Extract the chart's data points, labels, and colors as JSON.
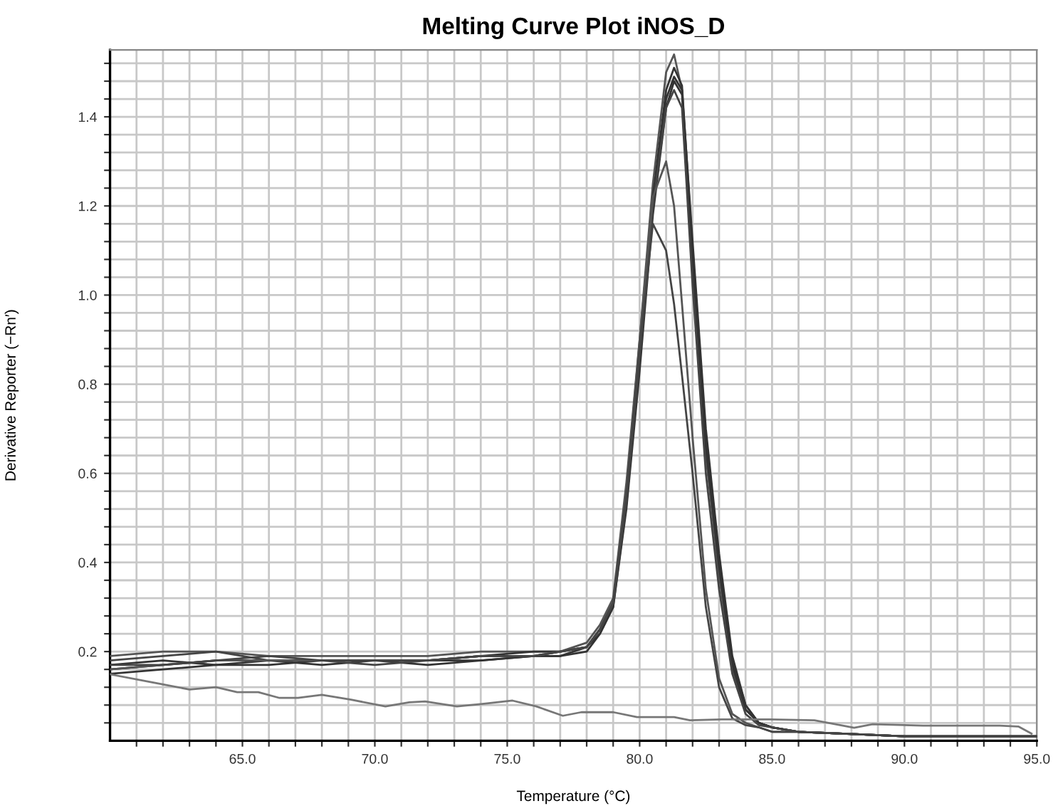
{
  "chart_data": {
    "type": "line",
    "title": "Melting Curve Plot iNOS_D",
    "xlabel": "Temperature (°C)",
    "ylabel": "Derivative Reporter (−Rn′)",
    "x": [
      60,
      62,
      64,
      66,
      68,
      70,
      72,
      74,
      76,
      77,
      78,
      78.5,
      79,
      79.5,
      80,
      80.5,
      81,
      81.3,
      81.6,
      82,
      82.5,
      83,
      83.5,
      84,
      84.5,
      85,
      86,
      88,
      90,
      95
    ],
    "series": [
      {
        "color": "#555555",
        "values": [
          0.19,
          0.2,
          0.2,
          0.19,
          0.19,
          0.19,
          0.19,
          0.2,
          0.2,
          0.2,
          0.22,
          0.26,
          0.32,
          0.58,
          0.9,
          1.25,
          1.5,
          1.54,
          1.46,
          1.05,
          0.64,
          0.37,
          0.16,
          0.07,
          0.04,
          0.03,
          0.02,
          0.015,
          0.01,
          0.01
        ]
      },
      {
        "color": "#333333",
        "values": [
          0.16,
          0.17,
          0.18,
          0.18,
          0.18,
          0.18,
          0.18,
          0.19,
          0.2,
          0.2,
          0.21,
          0.25,
          0.31,
          0.55,
          0.87,
          1.22,
          1.46,
          1.51,
          1.47,
          1.1,
          0.68,
          0.4,
          0.18,
          0.08,
          0.04,
          0.03,
          0.02,
          0.015,
          0.01,
          0.01
        ]
      },
      {
        "color": "#333333",
        "values": [
          0.17,
          0.18,
          0.17,
          0.17,
          0.18,
          0.18,
          0.17,
          0.18,
          0.19,
          0.19,
          0.2,
          0.24,
          0.3,
          0.53,
          0.85,
          1.2,
          1.44,
          1.49,
          1.46,
          1.12,
          0.7,
          0.42,
          0.19,
          0.08,
          0.04,
          0.03,
          0.02,
          0.015,
          0.01,
          0.01
        ]
      },
      {
        "color": "#333333",
        "values": [
          0.15,
          0.16,
          0.17,
          0.18,
          0.17,
          0.18,
          0.18,
          0.18,
          0.19,
          0.19,
          0.21,
          0.24,
          0.3,
          0.52,
          0.83,
          1.18,
          1.42,
          1.48,
          1.45,
          1.08,
          0.66,
          0.39,
          0.17,
          0.07,
          0.04,
          0.03,
          0.02,
          0.015,
          0.01,
          0.01
        ]
      },
      {
        "color": "#444444",
        "values": [
          0.18,
          0.19,
          0.2,
          0.18,
          0.18,
          0.17,
          0.18,
          0.19,
          0.19,
          0.2,
          0.21,
          0.25,
          0.31,
          0.54,
          0.86,
          1.2,
          1.42,
          1.46,
          1.42,
          1.02,
          0.6,
          0.34,
          0.15,
          0.06,
          0.035,
          0.03,
          0.02,
          0.015,
          0.01,
          0.01
        ]
      },
      {
        "color": "#555555",
        "values": [
          0.16,
          0.17,
          0.18,
          0.18,
          0.18,
          0.18,
          0.18,
          0.19,
          0.19,
          0.2,
          0.21,
          0.25,
          0.31,
          0.56,
          0.9,
          1.22,
          1.3,
          1.2,
          0.98,
          0.68,
          0.34,
          0.14,
          0.06,
          0.04,
          0.03,
          0.02,
          0.02,
          0.015,
          0.01,
          0.01
        ]
      },
      {
        "color": "#444444",
        "values": [
          0.17,
          0.17,
          0.18,
          0.19,
          0.18,
          0.18,
          0.18,
          0.19,
          0.19,
          0.2,
          0.21,
          0.25,
          0.31,
          0.55,
          0.88,
          1.16,
          1.1,
          0.98,
          0.82,
          0.6,
          0.3,
          0.12,
          0.05,
          0.035,
          0.03,
          0.02,
          0.02,
          0.015,
          0.01,
          0.01
        ]
      },
      {
        "color": "#777777",
        "x": [
          60.0,
          61.6,
          63.0,
          64.0,
          64.8,
          65.6,
          66.4,
          67.1,
          68.0,
          69.1,
          70.4,
          71.3,
          71.9,
          73.1,
          74.0,
          75.2,
          76.1,
          77.1,
          77.8,
          79.0,
          79.9,
          81.3,
          81.9,
          83.1,
          84.9,
          86.6,
          88.1,
          88.8,
          90.7,
          93.6,
          94.3,
          94.8
        ],
        "values": [
          0.149,
          0.131,
          0.115,
          0.12,
          0.109,
          0.109,
          0.096,
          0.096,
          0.103,
          0.092,
          0.077,
          0.086,
          0.088,
          0.077,
          0.082,
          0.09,
          0.077,
          0.056,
          0.064,
          0.064,
          0.053,
          0.053,
          0.046,
          0.048,
          0.048,
          0.046,
          0.029,
          0.037,
          0.034,
          0.034,
          0.032,
          0.016
        ]
      }
    ],
    "xlim": [
      60,
      95
    ],
    "xticks": [
      {
        "value": 61,
        "label": null
      },
      {
        "value": 62,
        "label": null
      },
      {
        "value": 63,
        "label": null
      },
      {
        "value": 64,
        "label": null
      },
      {
        "value": 65,
        "label": "65.0"
      },
      {
        "value": 66,
        "label": null
      },
      {
        "value": 67,
        "label": null
      },
      {
        "value": 68,
        "label": null
      },
      {
        "value": 69,
        "label": null
      },
      {
        "value": 70,
        "label": "70.0"
      },
      {
        "value": 71,
        "label": null
      },
      {
        "value": 72,
        "label": null
      },
      {
        "value": 73,
        "label": null
      },
      {
        "value": 74,
        "label": null
      },
      {
        "value": 75,
        "label": "75.0"
      },
      {
        "value": 76,
        "label": null
      },
      {
        "value": 77,
        "label": null
      },
      {
        "value": 78,
        "label": null
      },
      {
        "value": 79,
        "label": null
      },
      {
        "value": 80,
        "label": "80.0"
      },
      {
        "value": 81,
        "label": null
      },
      {
        "value": 82,
        "label": null
      },
      {
        "value": 83,
        "label": null
      },
      {
        "value": 84,
        "label": null
      },
      {
        "value": 85,
        "label": "85.0"
      },
      {
        "value": 86,
        "label": null
      },
      {
        "value": 87,
        "label": null
      },
      {
        "value": 88,
        "label": null
      },
      {
        "value": 89,
        "label": null
      },
      {
        "value": 90,
        "label": "90.0"
      },
      {
        "value": 91,
        "label": null
      },
      {
        "value": 92,
        "label": null
      },
      {
        "value": 93,
        "label": null
      },
      {
        "value": 94,
        "label": null
      },
      {
        "value": 95,
        "label": "95.0"
      }
    ],
    "ylim": [
      0,
      1.55
    ],
    "yticks": [
      {
        "value": 0.04,
        "label": null
      },
      {
        "value": 0.08,
        "label": null
      },
      {
        "value": 0.12,
        "label": null
      },
      {
        "value": 0.16,
        "label": null
      },
      0.2,
      {
        "value": 0.24,
        "label": null
      },
      {
        "value": 0.28,
        "label": null
      },
      {
        "value": 0.32,
        "label": null
      },
      {
        "value": 0.36,
        "label": null
      },
      0.4,
      {
        "value": 0.44,
        "label": null
      },
      {
        "value": 0.48,
        "label": null
      },
      {
        "value": 0.52,
        "label": null
      },
      {
        "value": 0.56,
        "label": null
      },
      0.6,
      {
        "value": 0.64,
        "label": null
      },
      {
        "value": 0.68,
        "label": null
      },
      {
        "value": 0.72,
        "label": null
      },
      {
        "value": 0.76,
        "label": null
      },
      0.8,
      {
        "value": 0.84,
        "label": null
      },
      {
        "value": 0.88,
        "label": null
      },
      {
        "value": 0.92,
        "label": null
      },
      {
        "value": 0.96,
        "label": null
      },
      {
        "value": 1.0,
        "label": "1.0"
      },
      {
        "value": 1.04,
        "label": null
      },
      {
        "value": 1.08,
        "label": null
      },
      {
        "value": 1.12,
        "label": null
      },
      {
        "value": 1.16,
        "label": null
      },
      1.2,
      {
        "value": 1.24,
        "label": null
      },
      {
        "value": 1.28,
        "label": null
      },
      {
        "value": 1.32,
        "label": null
      },
      {
        "value": 1.36,
        "label": null
      },
      1.4,
      {
        "value": 1.44,
        "label": null
      },
      {
        "value": 1.48,
        "label": null
      },
      {
        "value": 1.52,
        "label": null
      }
    ],
    "grid": true,
    "marker": "none",
    "line_style": "solid"
  }
}
